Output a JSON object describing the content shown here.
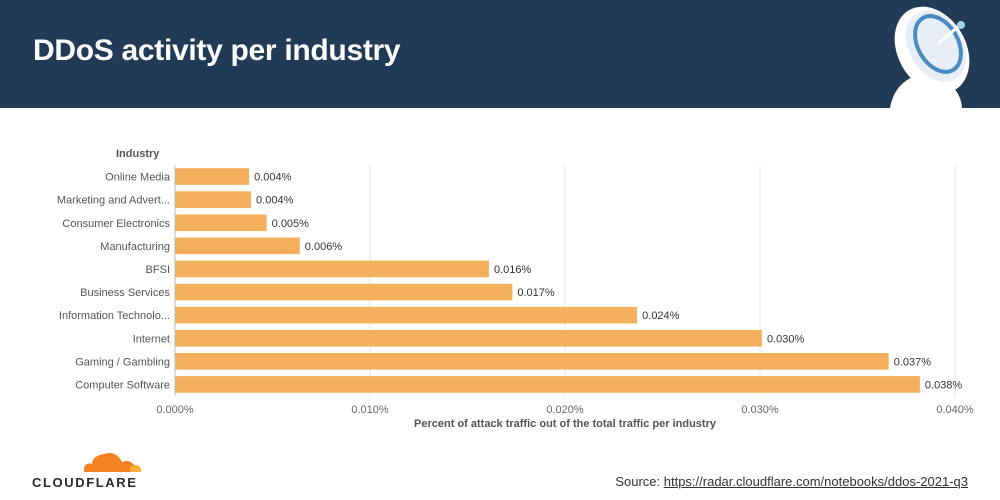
{
  "header": {
    "title": "DDoS activity per industry",
    "background": "#213a55"
  },
  "chart_data": {
    "type": "bar",
    "orientation": "horizontal",
    "title": "DDoS activity per industry",
    "ylabel": "Industry",
    "xlabel": "Percent of attack traffic out of the total traffic per industry",
    "categories": [
      "Online Media",
      "Marketing and Advert...",
      "Consumer Electronics",
      "Manufacturing",
      "BFSI",
      "Business Services",
      "Information Technolo...",
      "Internet",
      "Gaming / Gambling",
      "Computer Software"
    ],
    "values": [
      0.0038,
      0.0039,
      0.0047,
      0.0064,
      0.0161,
      0.0173,
      0.0237,
      0.0301,
      0.0366,
      0.0382
    ],
    "value_labels": [
      "0.004%",
      "0.004%",
      "0.005%",
      "0.006%",
      "0.016%",
      "0.017%",
      "0.024%",
      "0.030%",
      "0.037%",
      "0.038%"
    ],
    "xlim": [
      0,
      0.04
    ],
    "xticks": [
      0,
      0.01,
      0.02,
      0.03,
      0.04
    ],
    "xtick_labels": [
      "0.000%",
      "0.010%",
      "0.020%",
      "0.030%",
      "0.040%"
    ],
    "grid": true,
    "bar_color": "#f4b05c"
  },
  "footer": {
    "logo_text": "CLOUDFLARE",
    "source_label": "Source: ",
    "source_link": "https://radar.cloudflare.com/notebooks/ddos-2021-q3"
  }
}
